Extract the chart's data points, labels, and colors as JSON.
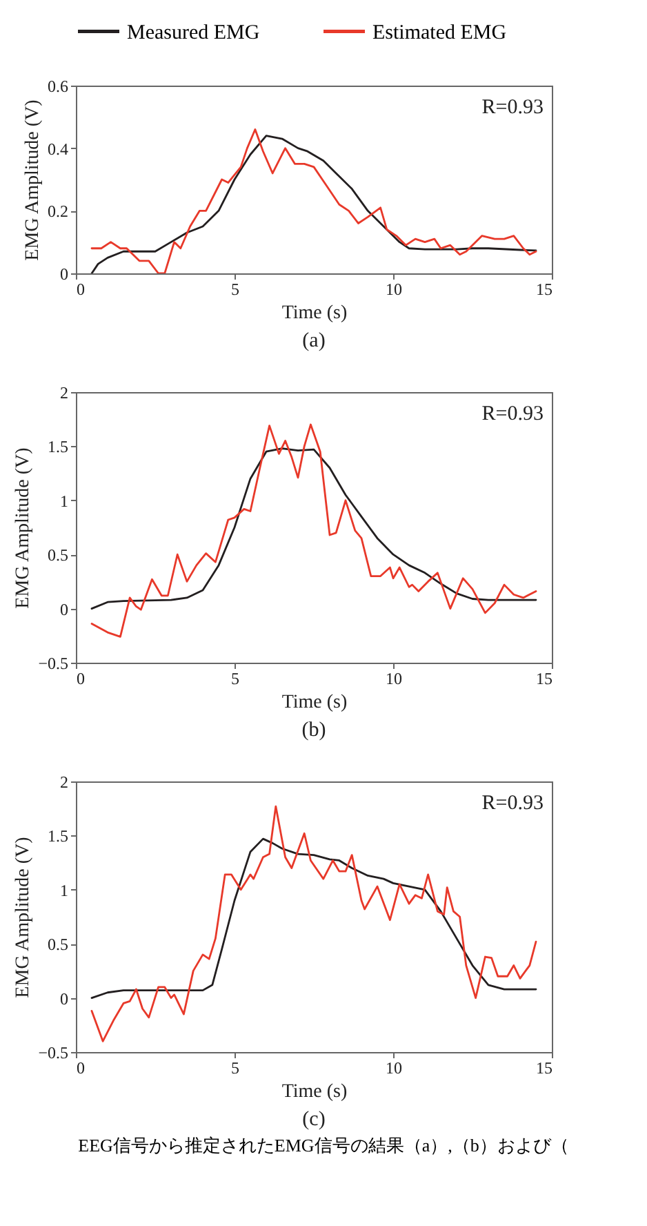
{
  "chart_data": [
    {
      "type": "line",
      "title": "(a)",
      "xlabel": "Time (s)",
      "ylabel": "EMG Amplitude (V)",
      "annotations": [
        "R=0.93"
      ],
      "legend": "top",
      "xlim": [
        0,
        15
      ],
      "xticks": [
        0,
        5,
        10,
        15
      ],
      "ylim": [
        0,
        0.6
      ],
      "yticks": [
        0,
        0.2,
        0.4,
        0.6
      ],
      "series": [
        {
          "name": "Measured EMG",
          "color": "#231f20",
          "x": [
            0.5,
            0.7,
            1,
            1.5,
            2,
            2.5,
            3,
            3.5,
            4,
            4.5,
            5,
            5.5,
            6,
            6.5,
            7,
            7.3,
            7.8,
            8.2,
            8.7,
            9.2,
            9.7,
            10.2,
            10.5,
            11,
            12,
            12.5,
            13,
            14,
            14.5
          ],
          "values": [
            0,
            0.03,
            0.05,
            0.07,
            0.07,
            0.07,
            0.1,
            0.13,
            0.15,
            0.2,
            0.3,
            0.38,
            0.44,
            0.43,
            0.4,
            0.39,
            0.36,
            0.32,
            0.27,
            0.2,
            0.15,
            0.1,
            0.08,
            0.077,
            0.077,
            0.08,
            0.08,
            0.075,
            0.073
          ]
        },
        {
          "name": "Estimated EMG",
          "color": "#e8392a",
          "x": [
            0.5,
            0.8,
            1.1,
            1.4,
            1.6,
            2,
            2.3,
            2.6,
            2.8,
            3.1,
            3.3,
            3.6,
            3.9,
            4.1,
            4.6,
            4.8,
            5.2,
            5.4,
            5.65,
            5.9,
            6.2,
            6.5,
            6.6,
            6.9,
            7.2,
            7.5,
            7.9,
            8.3,
            8.6,
            8.9,
            9.2,
            9.6,
            9.8,
            10.1,
            10.4,
            10.7,
            11,
            11.3,
            11.5,
            11.8,
            12.1,
            12.3,
            12.8,
            13.2,
            13.5,
            13.8,
            14.1,
            14.3,
            14.5
          ],
          "values": [
            0.08,
            0.08,
            0.1,
            0.08,
            0.08,
            0.04,
            0.04,
            0,
            0,
            0.1,
            0.08,
            0.15,
            0.2,
            0.2,
            0.3,
            0.29,
            0.34,
            0.4,
            0.46,
            0.39,
            0.32,
            0.38,
            0.4,
            0.35,
            0.35,
            0.34,
            0.28,
            0.22,
            0.2,
            0.16,
            0.18,
            0.21,
            0.14,
            0.12,
            0.09,
            0.11,
            0.1,
            0.11,
            0.08,
            0.09,
            0.06,
            0.07,
            0.12,
            0.11,
            0.11,
            0.12,
            0.08,
            0.06,
            0.07
          ]
        }
      ]
    },
    {
      "type": "line",
      "title": "(b)",
      "xlabel": "Time (s)",
      "ylabel": "EMG Amplitude (V)",
      "annotations": [
        "R=0.93"
      ],
      "xlim": [
        0,
        15
      ],
      "xticks": [
        0,
        5,
        10,
        15
      ],
      "ylim": [
        -0.5,
        2
      ],
      "yticks": [
        -0.5,
        0,
        0.5,
        1,
        1.5,
        2
      ],
      "series": [
        {
          "name": "Measured EMG",
          "color": "#231f20",
          "x": [
            0.5,
            1,
            1.5,
            3,
            3.5,
            4,
            4.5,
            5,
            5.5,
            6,
            6.5,
            7,
            7.5,
            8,
            8.5,
            9,
            9.5,
            10,
            10.5,
            11,
            11.5,
            12,
            12.5,
            13,
            14.5
          ],
          "values": [
            0,
            0.06,
            0.07,
            0.08,
            0.1,
            0.17,
            0.4,
            0.75,
            1.2,
            1.45,
            1.48,
            1.46,
            1.47,
            1.3,
            1.05,
            0.85,
            0.65,
            0.5,
            0.4,
            0.33,
            0.23,
            0.14,
            0.09,
            0.08,
            0.08
          ]
        },
        {
          "name": "Estimated EMG",
          "color": "#e8392a",
          "x": [
            0.5,
            1,
            1.4,
            1.7,
            1.9,
            2.05,
            2.4,
            2.7,
            2.9,
            3.2,
            3.5,
            3.8,
            4.1,
            4.4,
            4.8,
            5,
            5.3,
            5.5,
            5.8,
            6.1,
            6.4,
            6.6,
            6.8,
            7,
            7.2,
            7.4,
            7.7,
            8,
            8.2,
            8.5,
            8.8,
            9,
            9.3,
            9.6,
            9.9,
            10,
            10.2,
            10.5,
            10.6,
            10.8,
            11.1,
            11.4,
            11.8,
            12.2,
            12.5,
            12.9,
            13.2,
            13.5,
            13.8,
            14.1,
            14.5
          ],
          "values": [
            -0.14,
            -0.22,
            -0.26,
            0.1,
            0.02,
            -0.01,
            0.27,
            0.12,
            0.12,
            0.5,
            0.25,
            0.4,
            0.51,
            0.43,
            0.82,
            0.84,
            0.92,
            0.9,
            1.3,
            1.69,
            1.43,
            1.55,
            1.4,
            1.21,
            1.5,
            1.7,
            1.45,
            0.68,
            0.7,
            1,
            0.72,
            0.65,
            0.3,
            0.3,
            0.38,
            0.28,
            0.38,
            0.2,
            0.22,
            0.16,
            0.25,
            0.33,
            0,
            0.28,
            0.18,
            -0.04,
            0.05,
            0.22,
            0.13,
            0.1,
            0.16
          ]
        }
      ]
    },
    {
      "type": "line",
      "title": "(c)",
      "xlabel": "Time (s)",
      "ylabel": "EMG Amplitude (V)",
      "annotations": [
        "R=0.93",
        "EEG信号から推定されたEMG信号の結果（a）,（b）および（"
      ],
      "xlim": [
        0,
        15
      ],
      "xticks": [
        0,
        5,
        10,
        15
      ],
      "ylim": [
        -0.5,
        2
      ],
      "yticks": [
        -0.5,
        0,
        0.5,
        1,
        1.5,
        2
      ],
      "series": [
        {
          "name": "Measured EMG",
          "color": "#231f20",
          "x": [
            0.5,
            1,
            1.5,
            4,
            4.3,
            4.6,
            5,
            5.5,
            5.9,
            6.2,
            6.5,
            7,
            7.5,
            8,
            8.3,
            8.7,
            9.2,
            9.7,
            10,
            10.5,
            11,
            11.5,
            12,
            12.5,
            13,
            13.5,
            14.5
          ],
          "values": [
            0,
            0.05,
            0.07,
            0.07,
            0.12,
            0.45,
            0.9,
            1.35,
            1.47,
            1.43,
            1.38,
            1.33,
            1.32,
            1.28,
            1.27,
            1.2,
            1.13,
            1.1,
            1.06,
            1.03,
            1,
            0.8,
            0.55,
            0.3,
            0.12,
            0.08,
            0.08
          ]
        },
        {
          "name": "Estimated EMG",
          "color": "#e8392a",
          "x": [
            0.5,
            0.85,
            1.2,
            1.5,
            1.7,
            1.9,
            2.1,
            2.3,
            2.6,
            2.8,
            3,
            3.1,
            3.4,
            3.7,
            4,
            4.2,
            4.4,
            4.7,
            4.9,
            5.2,
            5.5,
            5.6,
            5.9,
            6.1,
            6.3,
            6.6,
            6.8,
            7.2,
            7.4,
            7.8,
            8.1,
            8.3,
            8.5,
            8.7,
            9,
            9.1,
            9.5,
            9.9,
            10.2,
            10.5,
            10.7,
            10.9,
            11.1,
            11.4,
            11.6,
            11.7,
            11.9,
            12.1,
            12.3,
            12.6,
            12.9,
            13.1,
            13.3,
            13.6,
            13.8,
            14,
            14.3,
            14.5
          ],
          "values": [
            -0.12,
            -0.4,
            -0.2,
            -0.05,
            -0.03,
            0.08,
            -0.1,
            -0.18,
            0.1,
            0.1,
            0,
            0.03,
            -0.15,
            0.25,
            0.4,
            0.36,
            0.55,
            1.14,
            1.14,
            1,
            1.14,
            1.1,
            1.3,
            1.33,
            1.77,
            1.3,
            1.2,
            1.52,
            1.27,
            1.1,
            1.27,
            1.17,
            1.17,
            1.32,
            0.9,
            0.82,
            1.03,
            0.72,
            1.05,
            0.87,
            0.95,
            0.92,
            1.14,
            0.8,
            0.77,
            1.02,
            0.8,
            0.75,
            0.3,
            0,
            0.38,
            0.37,
            0.2,
            0.2,
            0.3,
            0.18,
            0.3,
            0.52
          ]
        }
      ]
    }
  ]
}
